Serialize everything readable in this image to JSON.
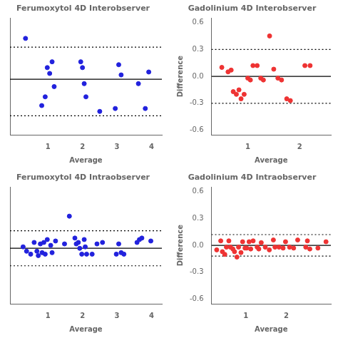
{
  "chart_data": [
    {
      "type": "scatter",
      "title": "Ferumoxytol 4D Interobserver",
      "xlabel": "Average",
      "color": "#2222DD",
      "x": [
        0.35,
        0.82,
        0.92,
        0.98,
        1.05,
        1.12,
        1.18,
        1.95,
        2.0,
        2.05,
        2.1,
        2.5,
        2.95,
        3.05,
        3.12,
        3.62,
        3.82,
        3.92
      ],
      "values": [
        0.28,
        -0.18,
        -0.12,
        0.08,
        0.04,
        0.12,
        -0.05,
        0.12,
        0.08,
        -0.03,
        -0.12,
        -0.22,
        -0.2,
        0.1,
        0.03,
        -0.03,
        -0.2,
        0.05
      ],
      "hlines": [
        {
          "value": 0.0,
          "line_style": "solid",
          "color": "#000000"
        },
        {
          "value": 0.22,
          "line_style": "dotted",
          "color": "#000000"
        },
        {
          "value": -0.25,
          "line_style": "dotted",
          "color": "#000000"
        }
      ],
      "xlim": [
        -0.1,
        4.3
      ],
      "ylim": [
        -0.38,
        0.42
      ],
      "xticks": [
        1,
        2,
        3,
        4
      ],
      "tick_labels": "x",
      "grid": false
    },
    {
      "type": "scatter",
      "title": "Gadolinium 4D Interobserver",
      "xlabel": "Average",
      "ylabel": "Difference",
      "color": "#EE3333",
      "x": [
        0.5,
        0.62,
        0.68,
        0.72,
        0.78,
        0.83,
        0.87,
        0.93,
        1.0,
        1.05,
        1.1,
        1.18,
        1.25,
        1.3,
        1.42,
        1.5,
        1.58,
        1.65,
        1.75,
        1.82,
        2.1,
        2.2
      ],
      "values": [
        0.1,
        0.05,
        0.07,
        -0.17,
        -0.2,
        -0.15,
        -0.25,
        -0.2,
        -0.02,
        -0.04,
        0.12,
        0.12,
        -0.02,
        -0.04,
        0.45,
        0.08,
        -0.02,
        -0.04,
        -0.25,
        -0.27,
        0.12,
        0.12
      ],
      "hlines": [
        {
          "value": 0.0,
          "line_style": "solid",
          "color": "#000000"
        },
        {
          "value": 0.3,
          "line_style": "dotted",
          "color": "#000000"
        },
        {
          "value": -0.3,
          "line_style": "dotted",
          "color": "#000000"
        }
      ],
      "xlim": [
        0.3,
        2.6
      ],
      "ylim": [
        -0.65,
        0.65
      ],
      "xticks": [
        1,
        2
      ],
      "yticks": [
        -0.6,
        -0.3,
        {
          "value": 0.0,
          "label": "0.0"
        },
        0.3,
        0.6
      ],
      "grid": false
    },
    {
      "type": "scatter",
      "title": "Ferumoxytol 4D Intraobserver",
      "xlabel": "Average",
      "color": "#2222DD",
      "x": [
        0.28,
        0.38,
        0.5,
        0.6,
        0.68,
        0.72,
        0.78,
        0.83,
        0.88,
        0.92,
        0.98,
        1.08,
        1.12,
        1.22,
        1.48,
        1.62,
        1.78,
        1.82,
        1.88,
        1.92,
        1.98,
        2.05,
        2.08,
        2.12,
        2.28,
        2.42,
        2.58,
        2.98,
        3.05,
        3.12,
        3.2,
        3.58,
        3.65,
        3.72,
        3.98
      ],
      "values": [
        0.01,
        -0.02,
        -0.04,
        0.04,
        -0.02,
        -0.05,
        0.03,
        -0.03,
        0.04,
        -0.04,
        0.06,
        0.02,
        -0.03,
        0.05,
        0.03,
        0.22,
        0.07,
        0.03,
        0.04,
        0.0,
        -0.04,
        0.06,
        0.01,
        -0.04,
        -0.04,
        0.03,
        0.04,
        -0.04,
        0.03,
        -0.03,
        -0.04,
        0.04,
        0.06,
        0.07,
        0.05
      ],
      "hlines": [
        {
          "value": 0.0,
          "line_style": "solid",
          "color": "#000000"
        },
        {
          "value": 0.12,
          "line_style": "dotted",
          "color": "#000000"
        },
        {
          "value": -0.12,
          "line_style": "dotted",
          "color": "#000000"
        }
      ],
      "xlim": [
        -0.1,
        4.3
      ],
      "ylim": [
        -0.38,
        0.42
      ],
      "xticks": [
        1,
        2,
        3,
        4
      ],
      "tick_labels": "x",
      "grid": false
    },
    {
      "type": "scatter",
      "title": "Gadolinium 4D Intraobserver",
      "xlabel": "Average",
      "ylabel": "Difference",
      "color": "#EE3333",
      "x": [
        0.28,
        0.38,
        0.42,
        0.48,
        0.52,
        0.58,
        0.62,
        0.68,
        0.72,
        0.78,
        0.82,
        0.88,
        0.92,
        0.98,
        1.02,
        1.08,
        1.12,
        1.18,
        1.28,
        1.32,
        1.38,
        1.48,
        1.58,
        1.68,
        1.72,
        1.82,
        1.92,
        1.98,
        2.08,
        2.18,
        2.28,
        2.48,
        2.52,
        2.58,
        2.78,
        2.98
      ],
      "values": [
        -0.05,
        0.05,
        -0.07,
        -0.1,
        -0.02,
        0.05,
        -0.02,
        -0.04,
        -0.07,
        -0.13,
        -0.02,
        -0.08,
        0.04,
        -0.03,
        -0.03,
        0.04,
        -0.04,
        0.05,
        -0.02,
        -0.04,
        0.03,
        -0.02,
        -0.05,
        0.06,
        -0.02,
        -0.02,
        -0.03,
        0.04,
        -0.02,
        -0.03,
        0.06,
        -0.02,
        0.05,
        -0.04,
        -0.03,
        0.04
      ],
      "hlines": [
        {
          "value": 0.0,
          "line_style": "solid",
          "color": "#000000"
        },
        {
          "value": 0.12,
          "line_style": "dotted",
          "color": "#000000"
        },
        {
          "value": -0.12,
          "line_style": "dotted",
          "color": "#000000"
        }
      ],
      "xlim": [
        0.15,
        3.1
      ],
      "ylim": [
        -0.65,
        0.65
      ],
      "xticks": [
        1,
        2
      ],
      "yticks": [
        -0.6,
        -0.3,
        {
          "value": 0.0,
          "label": "0.0"
        },
        0.3,
        0.6
      ],
      "grid": false
    }
  ]
}
